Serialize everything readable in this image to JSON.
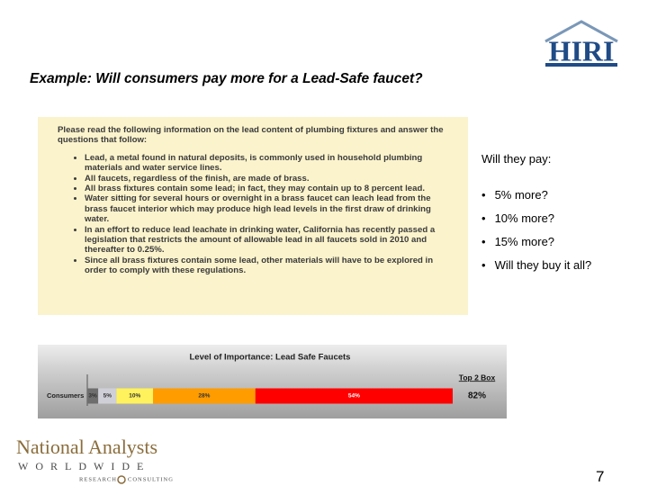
{
  "logo": {
    "text": "HIRI"
  },
  "title": "Example: Will consumers pay more for a Lead-Safe faucet?",
  "info_box": {
    "intro": "Please read the following information on the lead content of plumbing fixtures and answer the questions that follow:",
    "bullets": [
      "Lead, a metal found in natural deposits, is commonly used in household plumbing materials and water service lines.",
      "All faucets, regardless of the finish, are made of brass.",
      "All brass fixtures contain some lead; in fact, they may contain up to 8 percent lead.",
      "Water sitting for several hours or overnight in a brass faucet can leach lead from the brass faucet interior which may produce high lead levels in the first draw of drinking water.",
      "In an effort to reduce lead leachate in drinking water, California has recently passed a legislation that restricts the amount of allowable lead in all faucets sold in 2010 and thereafter to 0.25%.",
      "Since all brass fixtures contain some lead, other materials will have to be explored in order to comply with these regulations."
    ]
  },
  "question": {
    "heading": "Will they pay:",
    "options": [
      "5% more?",
      "10% more?",
      "15% more?",
      "Will they buy it all?"
    ]
  },
  "chart_data": {
    "type": "stacked-bar",
    "orientation": "horizontal",
    "title": "Level of Importance: Lead Safe Faucets",
    "categories": [
      "Consumers"
    ],
    "xlim": [
      0,
      100
    ],
    "series": [
      {
        "color": "#6e6e6e",
        "values": [
          3
        ],
        "value_labels": [
          "3%"
        ]
      },
      {
        "color": "#cfcfd8",
        "values": [
          5
        ],
        "value_labels": [
          "5%"
        ]
      },
      {
        "color": "#fff25c",
        "values": [
          10
        ],
        "value_labels": [
          "10%"
        ]
      },
      {
        "color": "#ff9c00",
        "values": [
          28
        ],
        "value_labels": [
          "28%"
        ]
      },
      {
        "color": "#ff0000",
        "values": [
          54
        ],
        "value_labels": [
          "54%"
        ]
      }
    ],
    "top_box": {
      "title": "Top 2 Box",
      "text": "82%"
    }
  },
  "footer": {
    "company": "National Analysts",
    "tagline": "WORLDWIDE",
    "subline": [
      "RESEARCH",
      "CONSULTING"
    ],
    "page": "7"
  }
}
